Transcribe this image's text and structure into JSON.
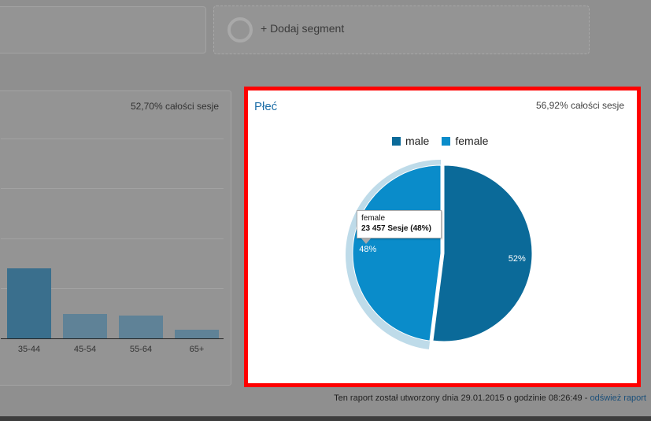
{
  "segments": {
    "add_label": "+ Dodaj segment"
  },
  "age_card": {
    "pct_label": "52,70% całości sesje",
    "chart_data": {
      "type": "bar",
      "categories": [
        "35-44",
        "45-54",
        "55-64",
        "65+"
      ],
      "values": [
        89,
        31,
        29,
        11
      ],
      "ylim": [
        0,
        100
      ]
    }
  },
  "gender_panel": {
    "title": "Płeć",
    "pct_label": "56,92% całości sesje",
    "legend": [
      {
        "label": "male",
        "color": "#0b6a99"
      },
      {
        "label": "female",
        "color": "#0a8cca"
      }
    ],
    "chart_data": {
      "type": "pie",
      "categories": [
        "male",
        "female"
      ],
      "values": [
        52,
        48
      ],
      "labels": [
        "52%",
        "48%"
      ],
      "highlighted": "female"
    },
    "tooltip": {
      "series": "female",
      "value": "23 457 Sesje (48%)"
    }
  },
  "footer": {
    "text": "Ten raport został utworzony dnia 29.01.2015 o godzinie 08:26:49 - ",
    "refresh_link": "odśwież raport"
  }
}
